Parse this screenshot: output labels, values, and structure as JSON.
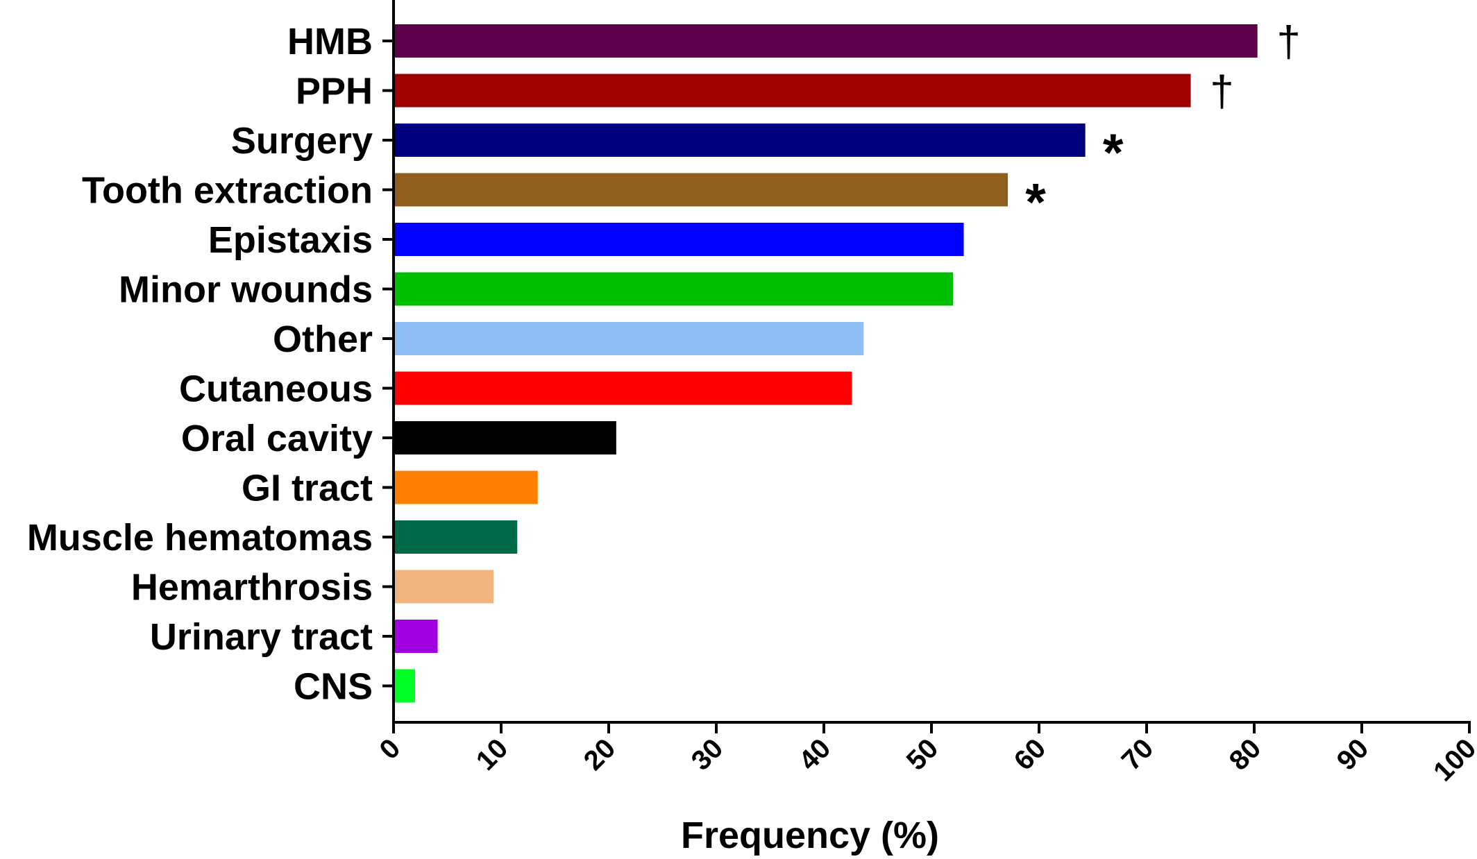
{
  "chart_data": {
    "type": "bar",
    "orientation": "horizontal",
    "categories": [
      "HMB",
      "PPH",
      "Surgery",
      "Tooth extraction",
      "Epistaxis",
      "Minor wounds",
      "Other ",
      "Cutaneous",
      "Oral cavity",
      "GI tract",
      "Muscle hematomas",
      "Hemarthrosis",
      "Urinary tract",
      "CNS"
    ],
    "values": [
      80.3,
      74.1,
      64.3,
      57.1,
      53.0,
      52.0,
      43.7,
      42.6,
      20.7,
      13.4,
      11.5,
      9.3,
      4.1,
      2.0
    ],
    "colors": [
      "#5c004a",
      "#9e0000",
      "#00007f",
      "#8f5e1f",
      "#0000ff",
      "#00bf00",
      "#8fbff5",
      "#ff0000",
      "#000000",
      "#ff7f00",
      "#006a48",
      "#f0b47e",
      "#9f00df",
      "#00ff24"
    ],
    "annotations": [
      "†",
      "†",
      "*",
      "*",
      "",
      "",
      "",
      "",
      "",
      "",
      "",
      "",
      "",
      ""
    ],
    "xlabel": "Frequency (%)",
    "ylabel": "",
    "xlim": [
      0,
      100
    ],
    "xticks": [
      "0",
      "10",
      "20",
      "30",
      "40",
      "50",
      "60",
      "70",
      "80",
      "90",
      "100"
    ],
    "grid": false,
    "legend": "none"
  }
}
